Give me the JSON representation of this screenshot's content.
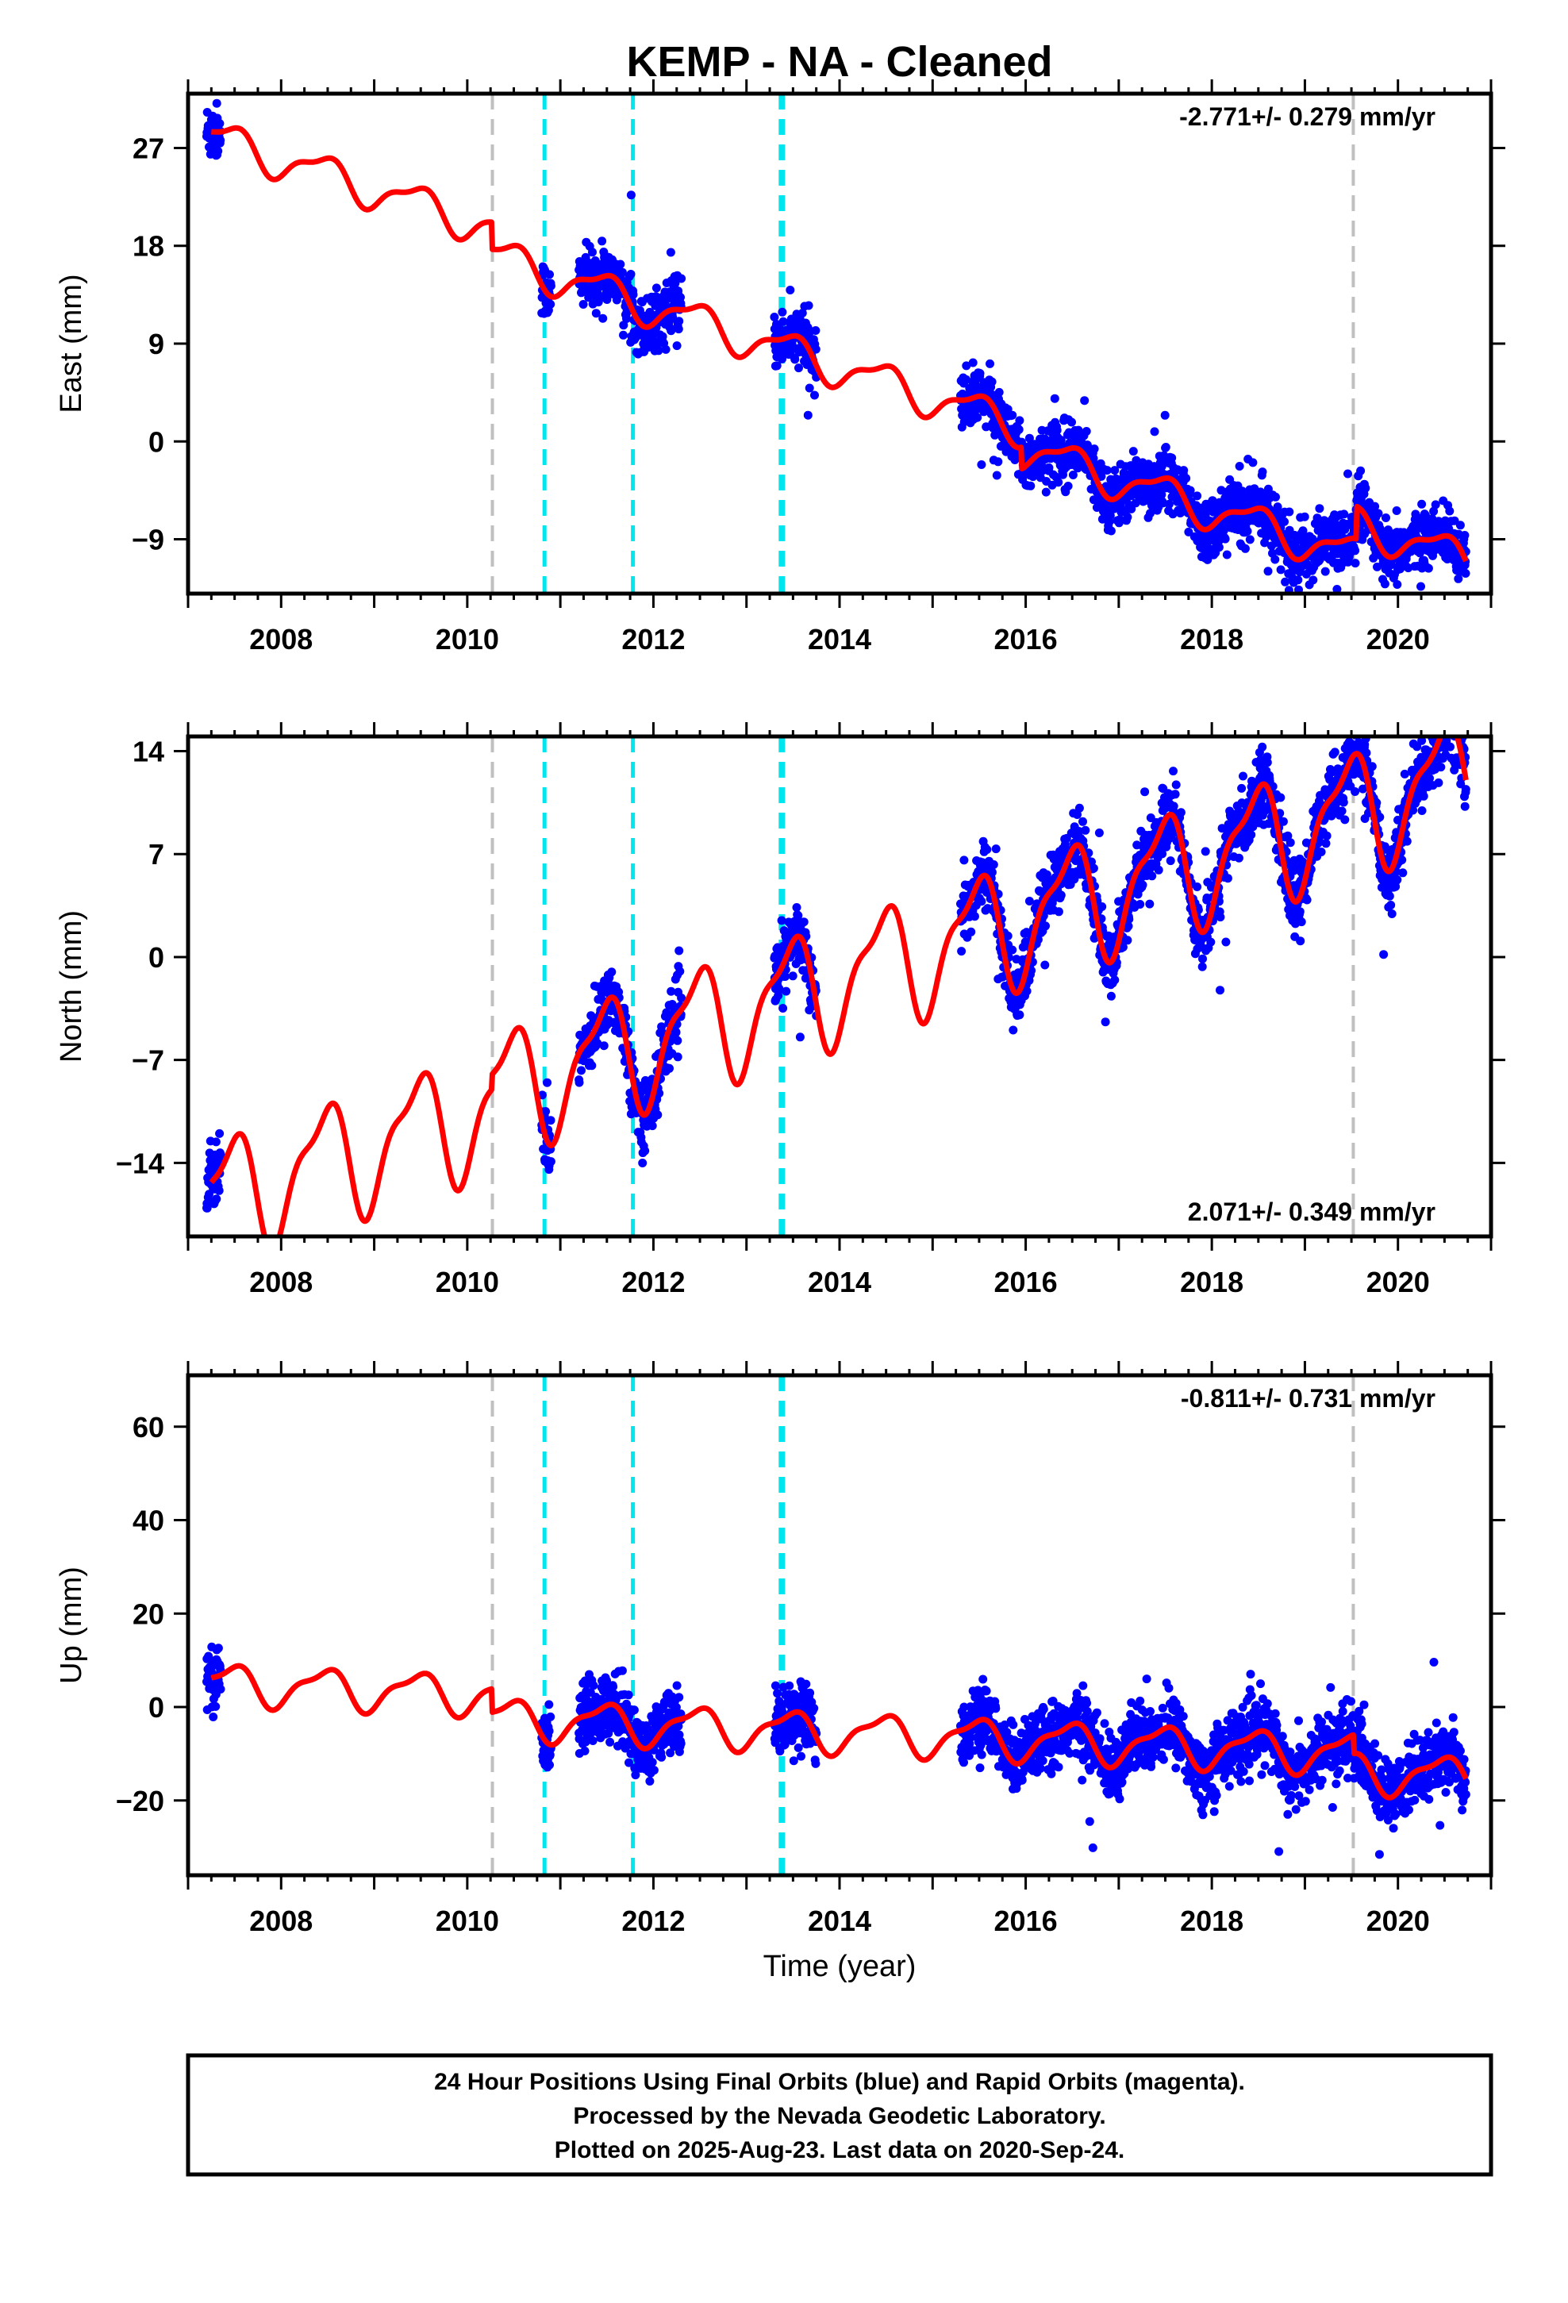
{
  "figure": {
    "title": "KEMP  - NA - Cleaned",
    "xlabel": "Time (year)",
    "footer": [
      "24 Hour Positions Using Final Orbits (blue) and Rapid Orbits (magenta).",
      "Processed by the Nevada Geodetic Laboratory.",
      "Plotted on 2025-Aug-23. Last data on 2020-Sep-24."
    ]
  },
  "colors": {
    "data": "#0000ff",
    "model": "#ff0000",
    "equipment_change": "#00e5ee",
    "earthquake": "#c0c0c0",
    "frame": "#000000"
  },
  "chart_data": [
    {
      "type": "scatter",
      "component": "East",
      "ylabel": "East (mm)",
      "xlim": [
        2007.0,
        2021.0
      ],
      "ylim": [
        -14,
        32
      ],
      "yticks": [
        -9,
        0,
        9,
        18,
        27
      ],
      "xticks": [
        2008,
        2010,
        2012,
        2014,
        2016,
        2018,
        2020
      ],
      "rate_text": "-2.771+/- 0.279 mm/yr",
      "rate_position": "top-right",
      "rate": -2.771,
      "annual_amplitude": 1.6,
      "offsets": [
        {
          "year": 2010.26,
          "value": -2.5
        },
        {
          "year": 2015.95,
          "value": -2.0
        },
        {
          "year": 2019.55,
          "value": 3.0
        }
      ],
      "scatter_sigma": 1.3,
      "model_start": [
        2007.25,
        28.0
      ],
      "data_segments": [
        [
          2007.2,
          2007.35
        ],
        [
          2010.8,
          2010.9
        ],
        [
          2011.2,
          2012.3
        ],
        [
          2013.3,
          2013.75
        ],
        [
          2015.3,
          2020.73
        ]
      ],
      "vlines_equipment": [
        2010.83,
        2011.78,
        2013.38
      ],
      "vlines_earthquake": [
        2010.27,
        2019.52
      ]
    },
    {
      "type": "scatter",
      "component": "North",
      "ylabel": "North (mm)",
      "xlim": [
        2007.0,
        2021.0
      ],
      "ylim": [
        -19,
        15
      ],
      "yticks": [
        -14,
        -7,
        0,
        7,
        14
      ],
      "xticks": [
        2008,
        2010,
        2012,
        2014,
        2016,
        2018,
        2020
      ],
      "rate_text": "2.071+/- 0.349 mm/yr",
      "rate_position": "bottom-right",
      "rate": 2.071,
      "annual_amplitude": 3.8,
      "offsets": [
        {
          "year": 2010.26,
          "value": 1.0
        }
      ],
      "scatter_sigma": 1.1,
      "model_start": [
        2007.25,
        -16.5
      ],
      "data_segments": [
        [
          2007.2,
          2007.35
        ],
        [
          2010.8,
          2010.9
        ],
        [
          2011.2,
          2012.3
        ],
        [
          2013.3,
          2013.75
        ],
        [
          2015.3,
          2020.73
        ]
      ],
      "vlines_equipment": [
        2010.83,
        2011.78,
        2013.38
      ],
      "vlines_earthquake": [
        2010.27,
        2019.52
      ]
    },
    {
      "type": "scatter",
      "component": "Up",
      "ylabel": "Up (mm)",
      "xlim": [
        2007.0,
        2021.0
      ],
      "ylim": [
        -36,
        71
      ],
      "yticks": [
        -20,
        0,
        20,
        40,
        60
      ],
      "xticks": [
        2008,
        2010,
        2012,
        2014,
        2016,
        2018,
        2020
      ],
      "rate_text": "-0.811+/- 0.731 mm/yr",
      "rate_position": "top-right",
      "rate": -0.811,
      "annual_amplitude": 4.0,
      "offsets": [
        {
          "year": 2010.26,
          "value": -5.0
        },
        {
          "year": 2019.52,
          "value": -4.0
        }
      ],
      "scatter_sigma": 3.5,
      "model_start": [
        2007.25,
        5.0
      ],
      "data_segments": [
        [
          2007.2,
          2007.35
        ],
        [
          2010.8,
          2010.9
        ],
        [
          2011.2,
          2012.3
        ],
        [
          2013.3,
          2013.75
        ],
        [
          2015.3,
          2020.73
        ]
      ],
      "vlines_equipment": [
        2010.83,
        2011.78,
        2013.38
      ],
      "vlines_earthquake": [
        2010.27,
        2019.52
      ]
    }
  ]
}
